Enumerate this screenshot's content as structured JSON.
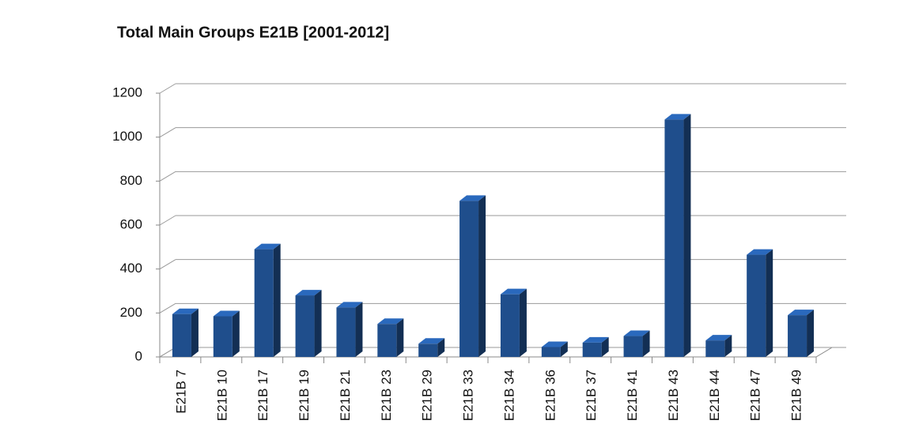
{
  "chart_data": {
    "type": "bar",
    "title": "Total Main Groups E21B [2001-2012]",
    "categories": [
      "E21B 7",
      "E21B 10",
      "E21B 17",
      "E21B 19",
      "E21B 21",
      "E21B 23",
      "E21B 29",
      "E21B 33",
      "E21B 34",
      "E21B 36",
      "E21B 37",
      "E21B 41",
      "E21B 43",
      "E21B 44",
      "E21B 47",
      "E21B 49"
    ],
    "values": [
      195,
      185,
      490,
      280,
      225,
      150,
      60,
      710,
      285,
      45,
      65,
      95,
      1080,
      75,
      465,
      190
    ],
    "color": "#1f4e8c",
    "ylim": [
      0,
      1200
    ],
    "yticks": [
      0,
      200,
      400,
      600,
      800,
      1000,
      1200
    ],
    "grid": true
  }
}
